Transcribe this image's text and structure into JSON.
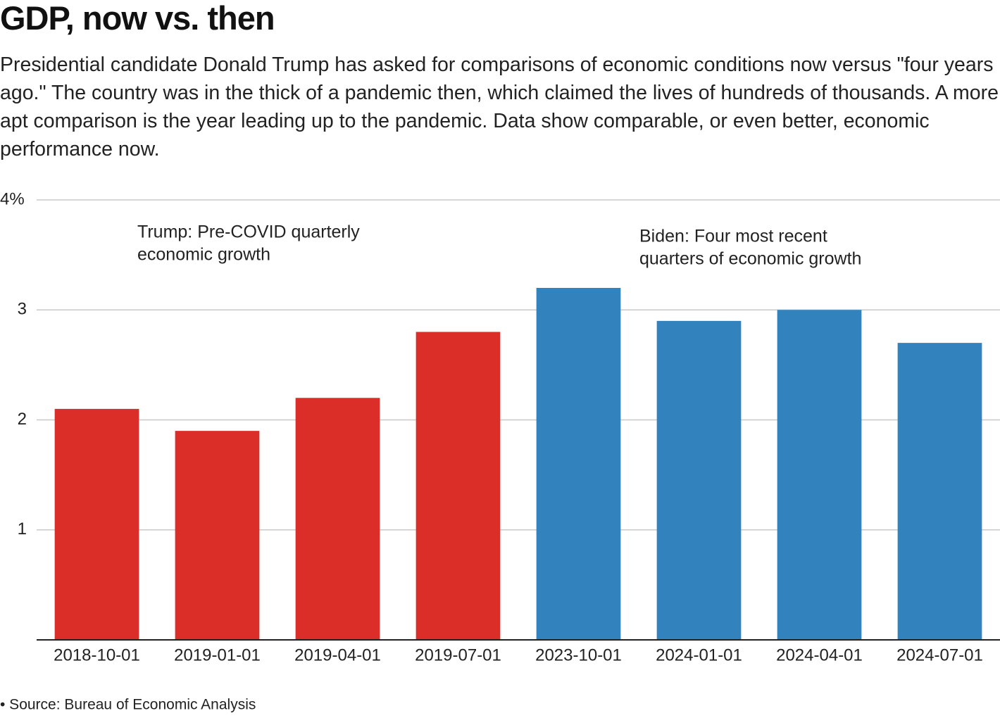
{
  "chart_data": {
    "type": "bar",
    "title": "GDP, now vs. then",
    "subtitle": "Presidential candidate Donald Trump has asked for comparisons of economic conditions now versus \"four years ago.\" The country was in the thick of a pandemic then, which claimed the lives of hundreds of thousands. A more apt comparison is the year leading up to the pandemic. Data show comparable, or even better, economic performance now.",
    "categories": [
      "2018-10-01",
      "2019-01-01",
      "2019-04-01",
      "2019-07-01",
      "2023-10-01",
      "2024-01-01",
      "2024-04-01",
      "2024-07-01"
    ],
    "values": [
      2.1,
      1.9,
      2.2,
      2.8,
      3.2,
      2.9,
      3.0,
      2.7
    ],
    "colors": [
      "#dc2e28",
      "#dc2e28",
      "#dc2e28",
      "#dc2e28",
      "#3182bd",
      "#3182bd",
      "#3182bd",
      "#3182bd"
    ],
    "ylim": [
      0,
      4
    ],
    "yticks": [
      1,
      2,
      3,
      {
        "value": 4,
        "label": "4%"
      }
    ],
    "grid": true,
    "annotations": [
      {
        "lines": [
          "Trump: Pre-COVID quarterly",
          "economic growth"
        ]
      },
      {
        "lines": [
          "Biden: Four most recent",
          "quarters of economic growth"
        ]
      }
    ],
    "source": "• Source: Bureau of Economic Analysis"
  }
}
